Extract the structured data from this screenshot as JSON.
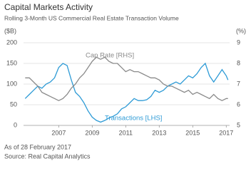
{
  "chart_data": {
    "type": "line",
    "title": "Capital Markets Activity",
    "subtitle": "Rolling 3-Month US Commercial Real Estate Transaction Volume",
    "y_label": "($B)",
    "y2_label": "(%)",
    "x": [
      2005,
      2005.25,
      2005.5,
      2005.75,
      2006,
      2006.25,
      2006.5,
      2006.75,
      2007,
      2007.25,
      2007.5,
      2007.75,
      2008,
      2008.25,
      2008.5,
      2008.75,
      2009,
      2009.25,
      2009.5,
      2009.75,
      2010,
      2010.25,
      2010.5,
      2010.75,
      2011,
      2011.25,
      2011.5,
      2011.75,
      2012,
      2012.25,
      2012.5,
      2012.75,
      2013,
      2013.25,
      2013.5,
      2013.75,
      2014,
      2014.25,
      2014.5,
      2014.75,
      2015,
      2015.25,
      2015.5,
      2015.75,
      2016,
      2016.25,
      2016.5,
      2016.75,
      2017,
      2017.1
    ],
    "series": [
      {
        "name": "Transactions [LHS]",
        "color": "#2e9bd6",
        "axis": "y",
        "values": [
          65,
          75,
          85,
          95,
          90,
          100,
          105,
          115,
          140,
          150,
          145,
          110,
          80,
          70,
          55,
          35,
          20,
          12,
          8,
          12,
          18,
          22,
          28,
          40,
          45,
          55,
          65,
          60,
          60,
          62,
          70,
          85,
          80,
          85,
          95,
          100,
          105,
          100,
          110,
          120,
          115,
          125,
          140,
          150,
          120,
          105,
          120,
          135,
          120,
          110
        ]
      },
      {
        "name": "Cap Rate [RHS]",
        "color": "#8a8a8a",
        "axis": "y2",
        "values": [
          7.3,
          7.3,
          7.1,
          6.9,
          6.6,
          6.5,
          6.4,
          6.3,
          6.2,
          6.3,
          6.5,
          6.8,
          7.0,
          7.3,
          7.5,
          7.8,
          8.1,
          8.3,
          8.2,
          8.3,
          8.1,
          8.0,
          8.0,
          7.8,
          7.6,
          7.7,
          7.6,
          7.6,
          7.5,
          7.4,
          7.3,
          7.3,
          7.2,
          7.0,
          6.9,
          6.9,
          6.8,
          6.7,
          6.6,
          6.7,
          6.5,
          6.6,
          6.5,
          6.4,
          6.3,
          6.5,
          6.3,
          6.2,
          6.3,
          6.3
        ]
      }
    ],
    "xlim": [
      2004.9,
      2017.2
    ],
    "xticks": [
      2007,
      2009,
      2011,
      2013,
      2015,
      2017
    ],
    "ylim": [
      0,
      200
    ],
    "yticks": [
      0,
      50,
      100,
      150,
      200
    ],
    "y2lim": [
      5,
      9
    ],
    "y2ticks": [
      5,
      6,
      7,
      8,
      9
    ],
    "grid": true,
    "footnotes": [
      "As of 28 February 2017",
      "Source: Real Capital Analytics"
    ]
  }
}
